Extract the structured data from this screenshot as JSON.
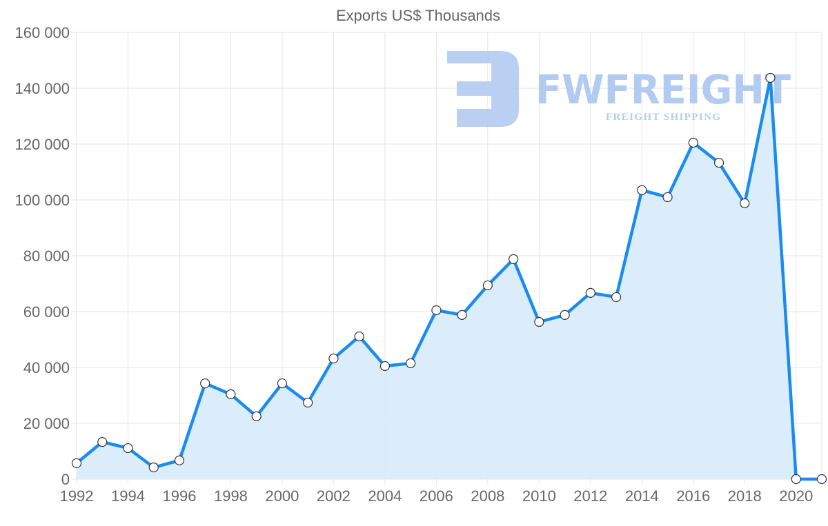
{
  "chart_data": {
    "type": "area",
    "title": "Exports US$ Thousands",
    "xlabel": "",
    "ylabel": "",
    "x": [
      1992,
      1993,
      1994,
      1995,
      1996,
      1997,
      1998,
      1999,
      2000,
      2001,
      2002,
      2003,
      2004,
      2005,
      2006,
      2007,
      2008,
      2009,
      2010,
      2011,
      2012,
      2013,
      2014,
      2015,
      2016,
      2017,
      2018,
      2019,
      2020,
      2021
    ],
    "series": [
      {
        "name": "Exports US$ Thousands",
        "values": [
          5700,
          13300,
          11100,
          4200,
          6700,
          34300,
          30400,
          22500,
          34300,
          27400,
          43200,
          51100,
          40500,
          41500,
          60500,
          58800,
          69400,
          78800,
          56300,
          58800,
          66700,
          65200,
          103500,
          101000,
          120500,
          113300,
          98800,
          143700,
          0,
          0
        ]
      }
    ],
    "ylim": [
      0,
      160000
    ],
    "xlim": [
      1992,
      2021
    ],
    "yticks": [
      "0",
      "20 000",
      "40 000",
      "60 000",
      "80 000",
      "100 000",
      "120 000",
      "140 000",
      "160 000"
    ],
    "xticks": [
      "1992",
      "1994",
      "1996",
      "1998",
      "2000",
      "2002",
      "2004",
      "2006",
      "2008",
      "2010",
      "2012",
      "2014",
      "2016",
      "2018",
      "2020"
    ],
    "grid": true,
    "legend": "none",
    "line_color": "#1a8cf0",
    "fill_color": "#d9ebfb"
  },
  "watermark": {
    "brand": "FWFREIGHT",
    "tagline": "FREIGHT SHIPPING",
    "color": "#a9c6f0"
  }
}
